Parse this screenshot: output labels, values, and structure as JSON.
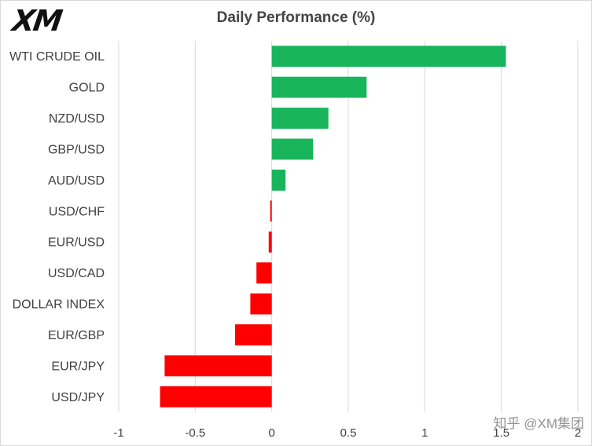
{
  "brand": {
    "logo_text": "XM",
    "watermark_text": "知乎 @XM集团"
  },
  "colors": {
    "positive": "#19b55b",
    "negative": "#ff0000",
    "grid": "#d9d9d9",
    "text": "#404040"
  },
  "chart_data": {
    "type": "bar",
    "orientation": "horizontal",
    "title": "Daily Performance (%)",
    "xlabel": "",
    "ylabel": "",
    "xlim": [
      -1,
      2
    ],
    "xticks": [
      "-1",
      "-0.5",
      "0",
      "0.5",
      "1",
      "1.5",
      "2"
    ],
    "grid": true,
    "legend": "none",
    "categories": [
      "WTI CRUDE OIL",
      "GOLD",
      "NZD/USD",
      "GBP/USD",
      "AUD/USD",
      "USD/CHF",
      "EUR/USD",
      "USD/CAD",
      "DOLLAR INDEX",
      "EUR/GBP",
      "EUR/JPY",
      "USD/JPY"
    ],
    "values": [
      1.53,
      0.62,
      0.37,
      0.27,
      0.09,
      -0.01,
      -0.02,
      -0.1,
      -0.14,
      -0.24,
      -0.7,
      -0.73
    ]
  }
}
